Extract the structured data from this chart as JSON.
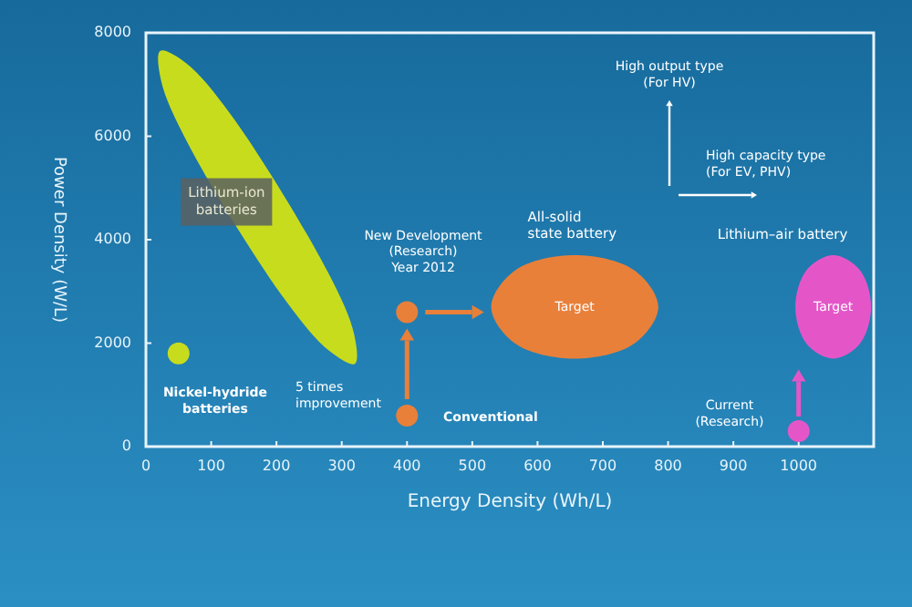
{
  "chart_data": {
    "type": "scatter",
    "xlabel": "Energy Density (Wh/L)",
    "ylabel": "Power Density (W/L)",
    "xlim": [
      0,
      1115
    ],
    "ylim": [
      0,
      8000
    ],
    "xticks": [
      0,
      100,
      200,
      300,
      400,
      500,
      600,
      700,
      800,
      900,
      1000
    ],
    "yticks": [
      0,
      2000,
      4000,
      6000,
      8000
    ],
    "grid": false,
    "series": [
      {
        "type": "area",
        "name": "Lithium-ion\nbatteries",
        "color": "#c8dc1e",
        "x": [
          22,
          61,
          130,
          278,
          319,
          320,
          281,
          213,
          64,
          23
        ],
        "values": [
          7650,
          7420,
          6420,
          3390,
          2170,
          1600,
          1850,
          2840,
          5870,
          7090
        ]
      },
      {
        "type": "area",
        "name": "All-solid\nstate battery",
        "color": "#e8803a",
        "x": [
          657,
          748,
          785,
          748,
          657,
          566,
          529,
          566
        ],
        "values": [
          3700,
          3410,
          2700,
          1990,
          1700,
          1990,
          2700,
          3410
        ]
      },
      {
        "type": "area",
        "name": "Lithium–air battery",
        "color": "#e456c8",
        "x": [
          1053,
          1094,
          1111,
          1094,
          1053,
          1012,
          995,
          1012
        ],
        "values": [
          3700,
          3410,
          2700,
          1990,
          1700,
          1990,
          2700,
          3410
        ]
      },
      {
        "x": [
          50,
          400,
          400,
          1000
        ],
        "values": [
          1800,
          600,
          2600,
          300
        ],
        "colors": [
          "#c8dc1e",
          "#e8803a",
          "#e8803a",
          "#e456c8"
        ]
      }
    ],
    "annotations": [
      "Target",
      "Target",
      "Nickel-hydride\nbatteries",
      "5 times\nimprovement",
      "Conventional",
      "New Development\n(Research)\nYear 2012",
      "Current\n(Research)",
      "High output type\n(For HV)",
      "High capacity type\n(For EV, PHV)"
    ]
  }
}
